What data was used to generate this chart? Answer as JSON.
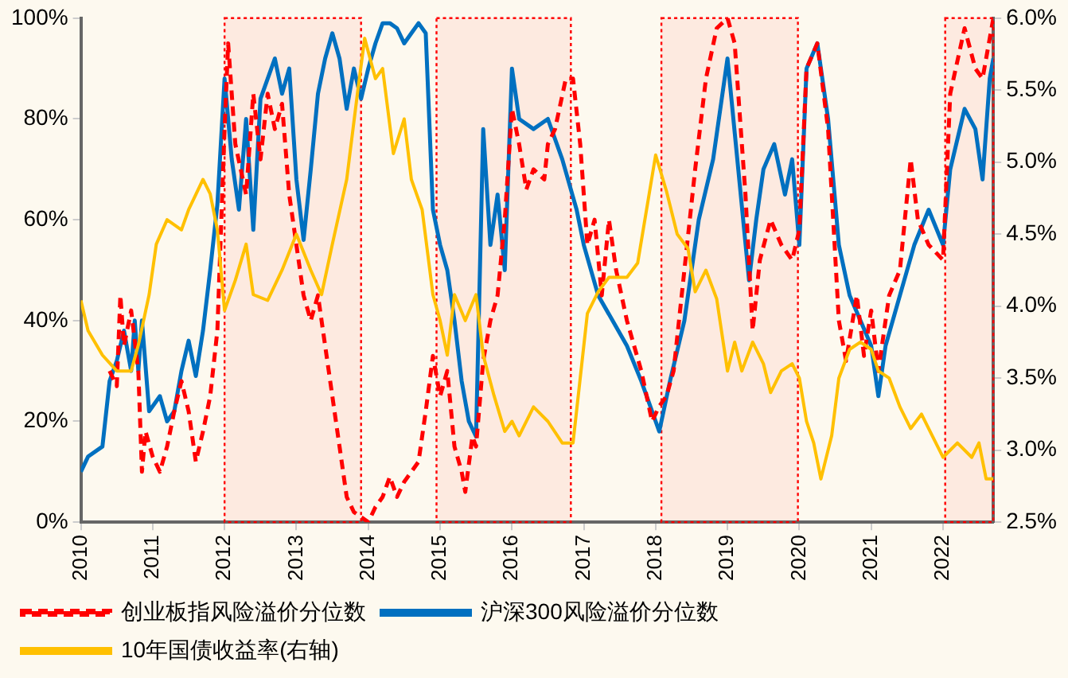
{
  "chart_data": {
    "type": "line",
    "xlim": [
      2010,
      2022.7
    ],
    "xticks": [
      2010,
      2011,
      2012,
      2013,
      2014,
      2015,
      2016,
      2017,
      2018,
      2019,
      2020,
      2021,
      2022
    ],
    "ylim": [
      0,
      100
    ],
    "yticks": [
      {
        "value": 0,
        "label": "0%"
      },
      {
        "value": 20,
        "label": "20%"
      },
      {
        "value": 40,
        "label": "40%"
      },
      {
        "value": 60,
        "label": "60%"
      },
      {
        "value": 80,
        "label": "80%"
      },
      {
        "value": 100,
        "label": "100%"
      }
    ],
    "y2lim": [
      2.5,
      6.0
    ],
    "y2ticks": [
      {
        "value": 2.5,
        "label": "2.5%"
      },
      {
        "value": 3.0,
        "label": "3.0%"
      },
      {
        "value": 3.5,
        "label": "3.5%"
      },
      {
        "value": 4.0,
        "label": "4.0%"
      },
      {
        "value": 4.5,
        "label": "4.5%"
      },
      {
        "value": 5.0,
        "label": "5.0%"
      },
      {
        "value": 5.5,
        "label": "5.5%"
      },
      {
        "value": 6.0,
        "label": "6.0%"
      }
    ],
    "legend": "bottom",
    "grid": false,
    "marker": "none",
    "bands": [
      {
        "axis": "x",
        "from": 2012.0,
        "to": 2013.9,
        "color": "#ff0000"
      },
      {
        "axis": "x",
        "from": 2014.95,
        "to": 2016.82,
        "color": "#ff0000"
      },
      {
        "axis": "x",
        "from": 2018.08,
        "to": 2019.98,
        "color": "#ff0000"
      },
      {
        "axis": "x",
        "from": 2022.03,
        "to": 2022.7,
        "color": "#ff0000"
      }
    ],
    "series": [
      {
        "name": "创业板指风险溢价分位数",
        "color": "#ff0000",
        "line_style": "dashed",
        "x": [
          2010.4,
          2010.5,
          2010.55,
          2010.6,
          2010.7,
          2010.8,
          2010.85,
          2010.9,
          2011.0,
          2011.1,
          2011.2,
          2011.3,
          2011.4,
          2011.5,
          2011.6,
          2011.7,
          2011.8,
          2011.9,
          2012.0,
          2012.05,
          2012.15,
          2012.3,
          2012.4,
          2012.5,
          2012.6,
          2012.7,
          2012.8,
          2012.9,
          2013.0,
          2013.1,
          2013.2,
          2013.3,
          2013.4,
          2013.5,
          2013.6,
          2013.7,
          2013.8,
          2013.9,
          2014.0,
          2014.1,
          2014.2,
          2014.3,
          2014.4,
          2014.5,
          2014.6,
          2014.7,
          2014.8,
          2014.9,
          2015.0,
          2015.1,
          2015.2,
          2015.3,
          2015.35,
          2015.45,
          2015.5,
          2015.6,
          2015.7,
          2015.8,
          2015.9,
          2016.0,
          2016.1,
          2016.2,
          2016.3,
          2016.45,
          2016.5,
          2016.6,
          2016.75,
          2016.85,
          2016.95,
          2017.05,
          2017.15,
          2017.25,
          2017.35,
          2017.45,
          2017.6,
          2017.8,
          2017.95,
          2018.05,
          2018.15,
          2018.25,
          2018.4,
          2018.55,
          2018.7,
          2018.85,
          2019.0,
          2019.1,
          2019.25,
          2019.35,
          2019.45,
          2019.6,
          2019.75,
          2019.9,
          2020.0,
          2020.1,
          2020.25,
          2020.4,
          2020.55,
          2020.65,
          2020.8,
          2020.9,
          2021.0,
          2021.1,
          2021.25,
          2021.4,
          2021.55,
          2021.65,
          2021.8,
          2022.0,
          2022.1,
          2022.3,
          2022.45,
          2022.55,
          2022.7
        ],
        "values": [
          30,
          27,
          45,
          35,
          42,
          30,
          10,
          18,
          13,
          10,
          15,
          22,
          28,
          22,
          12,
          18,
          25,
          38,
          78,
          95,
          75,
          65,
          85,
          72,
          85,
          78,
          83,
          65,
          55,
          45,
          40,
          45,
          35,
          25,
          15,
          5,
          2,
          1,
          0,
          3,
          5,
          9,
          5,
          8,
          10,
          12,
          22,
          33,
          25,
          30,
          15,
          10,
          6,
          17,
          15,
          32,
          40,
          45,
          60,
          82,
          75,
          66,
          70,
          68,
          75,
          78,
          88,
          88,
          75,
          55,
          60,
          45,
          60,
          50,
          40,
          30,
          20,
          23,
          25,
          30,
          50,
          70,
          88,
          98,
          100,
          95,
          65,
          38,
          52,
          60,
          55,
          52,
          58,
          90,
          95,
          78,
          40,
          32,
          45,
          33,
          42,
          30,
          45,
          50,
          72,
          60,
          55,
          52,
          85,
          98,
          90,
          88,
          100
        ]
      },
      {
        "name": "沪深300风险溢价分位数",
        "color": "#0070c0",
        "line_style": "solid",
        "x": [
          2010.0,
          2010.1,
          2010.3,
          2010.4,
          2010.5,
          2010.6,
          2010.7,
          2010.75,
          2010.8,
          2010.85,
          2010.95,
          2011.1,
          2011.2,
          2011.3,
          2011.4,
          2011.5,
          2011.6,
          2011.7,
          2011.8,
          2011.9,
          2012.0,
          2012.1,
          2012.2,
          2012.3,
          2012.4,
          2012.5,
          2012.6,
          2012.7,
          2012.8,
          2012.9,
          2013.0,
          2013.1,
          2013.2,
          2013.3,
          2013.4,
          2013.5,
          2013.6,
          2013.7,
          2013.8,
          2013.9,
          2014.0,
          2014.1,
          2014.2,
          2014.3,
          2014.4,
          2014.5,
          2014.6,
          2014.7,
          2014.8,
          2014.9,
          2015.0,
          2015.1,
          2015.2,
          2015.3,
          2015.4,
          2015.5,
          2015.6,
          2015.7,
          2015.8,
          2015.9,
          2016.0,
          2016.1,
          2016.3,
          2016.5,
          2016.7,
          2016.9,
          2017.0,
          2017.2,
          2017.4,
          2017.6,
          2017.8,
          2018.0,
          2018.05,
          2018.2,
          2018.4,
          2018.6,
          2018.8,
          2019.0,
          2019.15,
          2019.3,
          2019.4,
          2019.5,
          2019.65,
          2019.8,
          2019.9,
          2020.0,
          2020.1,
          2020.25,
          2020.4,
          2020.55,
          2020.7,
          2020.85,
          2021.0,
          2021.1,
          2021.2,
          2021.4,
          2021.6,
          2021.8,
          2022.0,
          2022.1,
          2022.3,
          2022.45,
          2022.55,
          2022.65,
          2022.7
        ],
        "values": [
          10,
          13,
          15,
          28,
          32,
          38,
          30,
          40,
          30,
          40,
          22,
          25,
          20,
          22,
          30,
          36,
          29,
          38,
          50,
          63,
          88,
          72,
          62,
          80,
          58,
          84,
          88,
          92,
          85,
          90,
          68,
          56,
          70,
          85,
          92,
          97,
          92,
          82,
          90,
          84,
          90,
          95,
          99,
          99,
          98,
          95,
          97,
          99,
          97,
          62,
          55,
          50,
          40,
          28,
          20,
          17,
          78,
          55,
          65,
          50,
          90,
          80,
          78,
          80,
          72,
          62,
          55,
          45,
          40,
          35,
          28,
          20,
          18,
          28,
          40,
          60,
          72,
          92,
          70,
          48,
          60,
          70,
          75,
          65,
          72,
          55,
          90,
          95,
          80,
          55,
          45,
          40,
          35,
          25,
          35,
          45,
          55,
          62,
          55,
          70,
          82,
          78,
          68,
          88,
          92
        ]
      },
      {
        "name": "10年国债收益率(右轴)",
        "color": "#ffc000",
        "line_style": "solid",
        "axis": "y2",
        "x": [
          2010.0,
          2010.1,
          2010.3,
          2010.5,
          2010.7,
          2010.8,
          2010.95,
          2011.05,
          2011.2,
          2011.4,
          2011.5,
          2011.7,
          2011.8,
          2011.9,
          2012.0,
          2012.15,
          2012.3,
          2012.4,
          2012.6,
          2012.8,
          2013.0,
          2013.2,
          2013.35,
          2013.5,
          2013.7,
          2013.85,
          2013.95,
          2014.1,
          2014.2,
          2014.35,
          2014.5,
          2014.6,
          2014.75,
          2014.9,
          2015.0,
          2015.1,
          2015.2,
          2015.35,
          2015.5,
          2015.6,
          2015.75,
          2015.9,
          2016.0,
          2016.1,
          2016.3,
          2016.5,
          2016.7,
          2016.85,
          2016.95,
          2017.05,
          2017.2,
          2017.35,
          2017.5,
          2017.6,
          2017.75,
          2017.9,
          2018.0,
          2018.15,
          2018.3,
          2018.45,
          2018.55,
          2018.7,
          2018.85,
          2019.0,
          2019.1,
          2019.2,
          2019.35,
          2019.5,
          2019.6,
          2019.75,
          2019.9,
          2020.0,
          2020.1,
          2020.2,
          2020.3,
          2020.45,
          2020.55,
          2020.7,
          2020.85,
          2021.0,
          2021.1,
          2021.25,
          2021.4,
          2021.55,
          2021.7,
          2021.85,
          2022.0,
          2022.2,
          2022.4,
          2022.5,
          2022.6,
          2022.7
        ],
        "values": [
          4.04,
          3.83,
          3.66,
          3.55,
          3.55,
          3.73,
          4.08,
          4.43,
          4.6,
          4.53,
          4.67,
          4.88,
          4.78,
          4.53,
          3.97,
          4.18,
          4.43,
          4.08,
          4.04,
          4.25,
          4.5,
          4.25,
          4.08,
          4.43,
          4.88,
          5.48,
          5.86,
          5.58,
          5.65,
          5.06,
          5.3,
          4.88,
          4.67,
          4.08,
          3.9,
          3.66,
          4.08,
          3.9,
          4.08,
          3.66,
          3.38,
          3.13,
          3.2,
          3.1,
          3.3,
          3.2,
          3.05,
          3.05,
          3.5,
          3.95,
          4.1,
          4.2,
          4.2,
          4.2,
          4.3,
          4.75,
          5.05,
          4.8,
          4.5,
          4.4,
          4.1,
          4.25,
          4.05,
          3.55,
          3.75,
          3.55,
          3.75,
          3.6,
          3.4,
          3.55,
          3.6,
          3.5,
          3.2,
          3.05,
          2.8,
          3.1,
          3.5,
          3.7,
          3.75,
          3.7,
          3.55,
          3.5,
          3.3,
          3.15,
          3.25,
          3.1,
          2.95,
          3.05,
          2.95,
          3.05,
          2.8,
          2.8
        ]
      }
    ]
  }
}
